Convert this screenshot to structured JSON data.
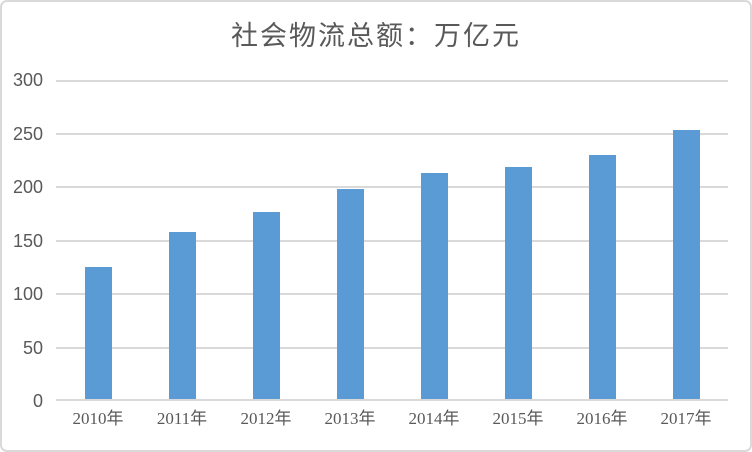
{
  "colors": {
    "bar": "#5b9bd5",
    "gridline": "#d9d9d9",
    "axis_text": "#595959",
    "title_text": "#595959",
    "frame_border": "#d9d9d9",
    "background": "#ffffff"
  },
  "chart_data": {
    "type": "bar",
    "title": "社会物流总额：万亿元",
    "categories": [
      "2010年",
      "2011年",
      "2012年",
      "2013年",
      "2014年",
      "2015年",
      "2016年",
      "2017年"
    ],
    "values": [
      125,
      158,
      177,
      198,
      213,
      219,
      230,
      253
    ],
    "xlabel": "",
    "ylabel": "",
    "ylim": [
      0,
      300
    ],
    "yticks": [
      0,
      50,
      100,
      150,
      200,
      250,
      300
    ],
    "grid": true,
    "legend": false,
    "bar_color": "#5b9bd5"
  }
}
